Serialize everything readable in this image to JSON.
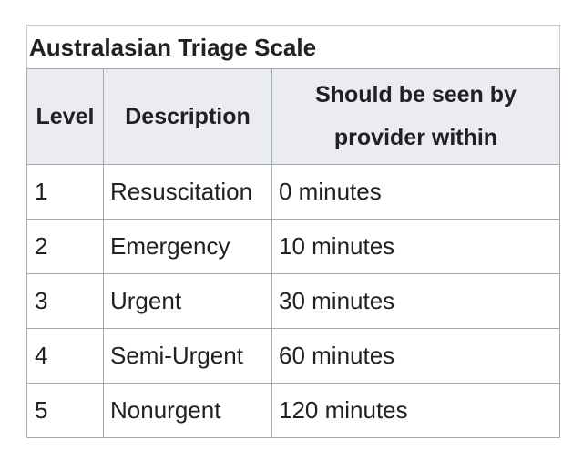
{
  "table": {
    "caption": "Australasian Triage Scale",
    "headers": [
      "Level",
      "Description",
      "Should be seen by provider within"
    ],
    "rows": [
      [
        "1",
        "Resuscitation",
        "0 minutes"
      ],
      [
        "2",
        "Emergency",
        "10 minutes"
      ],
      [
        "3",
        "Urgent",
        "30 minutes"
      ],
      [
        "4",
        "Semi-Urgent",
        "60 minutes"
      ],
      [
        "5",
        "Nonurgent",
        "120 minutes"
      ]
    ]
  }
}
